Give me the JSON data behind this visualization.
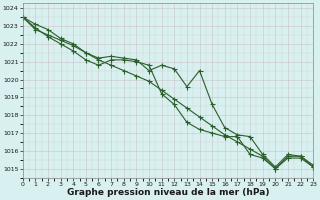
{
  "xlabel": "Graphe pression niveau de la mer (hPa)",
  "x_ticks": [
    0,
    1,
    2,
    3,
    4,
    5,
    6,
    7,
    8,
    9,
    10,
    11,
    12,
    13,
    14,
    15,
    16,
    17,
    18,
    19,
    20,
    21,
    22,
    23
  ],
  "ylim": [
    1014.5,
    1024.3
  ],
  "xlim": [
    0,
    23
  ],
  "y_ticks": [
    1015,
    1016,
    1017,
    1018,
    1019,
    1020,
    1021,
    1022,
    1023,
    1024
  ],
  "background_color": "#d8f0f0",
  "grid_color": "#c8b8c0",
  "line_color": "#2a5e2a",
  "line1": [
    1023.5,
    1023.1,
    1022.8,
    1022.3,
    1022.0,
    1021.5,
    1021.2,
    1021.3,
    1021.2,
    1021.1,
    1020.5,
    1020.8,
    1020.6,
    1019.6,
    1020.5,
    1018.6,
    1017.3,
    1016.9,
    1016.8,
    1015.8,
    1015.1,
    1015.8,
    1015.7,
    1015.2
  ],
  "line2": [
    1023.5,
    1022.8,
    1022.5,
    1022.2,
    1021.9,
    1021.5,
    1021.1,
    1020.8,
    1020.5,
    1020.2,
    1019.9,
    1019.4,
    1018.9,
    1018.4,
    1017.9,
    1017.4,
    1016.9,
    1016.5,
    1016.1,
    1015.7,
    1015.0,
    1015.6,
    1015.6,
    1015.1
  ],
  "line3": [
    1023.5,
    1022.9,
    1022.4,
    1022.0,
    1021.6,
    1021.1,
    1020.8,
    1021.1,
    1021.1,
    1021.0,
    1020.8,
    1019.2,
    1018.6,
    1017.6,
    1017.2,
    1017.0,
    1016.8,
    1016.8,
    1015.8,
    1015.6,
    1015.0,
    1015.7,
    1015.7,
    1015.1
  ],
  "marker": "P",
  "marker_size": 2.0,
  "linewidth": 0.8,
  "tick_fontsize": 4.5,
  "xlabel_fontsize": 6.5,
  "xlabel_bold": true
}
